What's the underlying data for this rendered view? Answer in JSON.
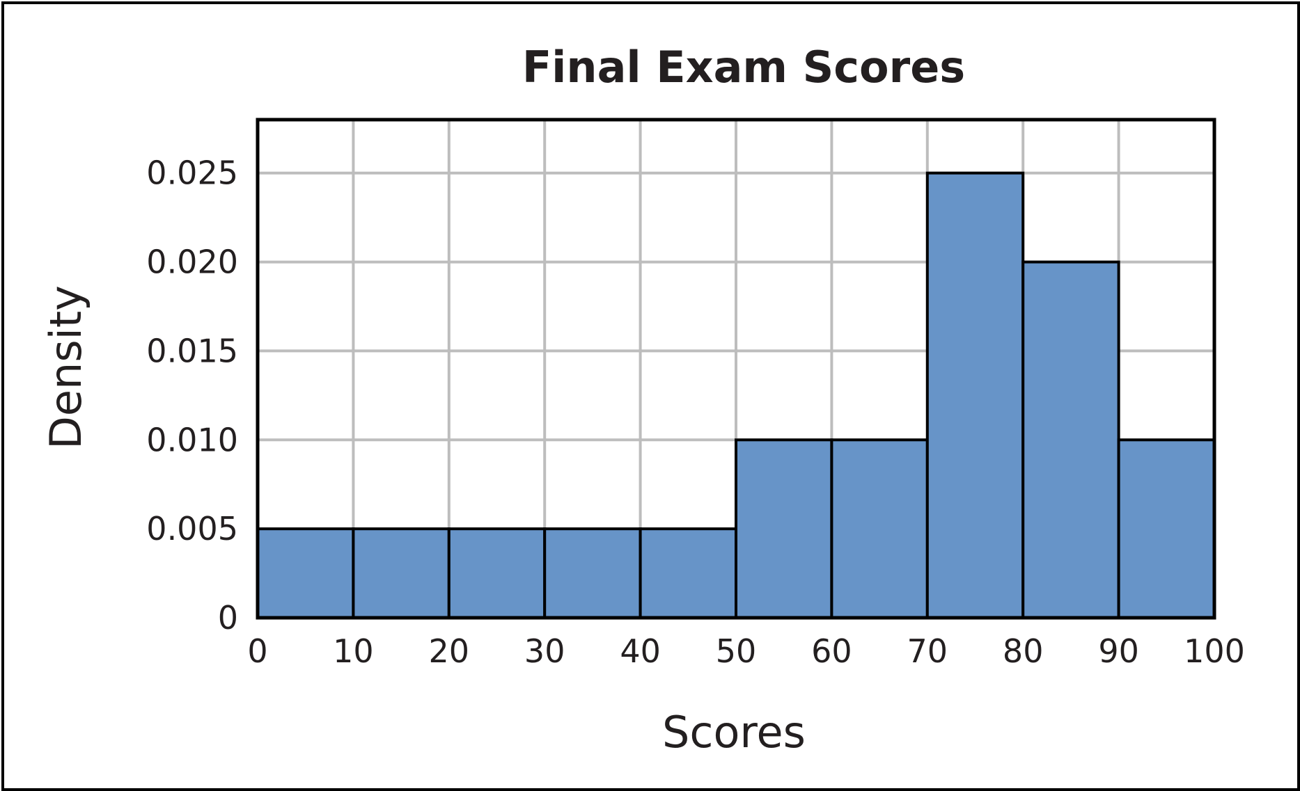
{
  "chart_data": {
    "type": "bar",
    "title": "Final Exam Scores",
    "xlabel": "Scores",
    "ylabel": "Density",
    "bins": [
      {
        "start": 0,
        "end": 10,
        "value": 0.005
      },
      {
        "start": 10,
        "end": 20,
        "value": 0.005
      },
      {
        "start": 20,
        "end": 30,
        "value": 0.005
      },
      {
        "start": 30,
        "end": 40,
        "value": 0.005
      },
      {
        "start": 40,
        "end": 50,
        "value": 0.005
      },
      {
        "start": 50,
        "end": 60,
        "value": 0.01
      },
      {
        "start": 60,
        "end": 70,
        "value": 0.01
      },
      {
        "start": 70,
        "end": 80,
        "value": 0.025
      },
      {
        "start": 80,
        "end": 90,
        "value": 0.02
      },
      {
        "start": 90,
        "end": 100,
        "value": 0.01
      }
    ],
    "xlim": [
      0,
      100
    ],
    "ylim": [
      0,
      0.028
    ],
    "x_ticks": [
      0,
      10,
      20,
      30,
      40,
      50,
      60,
      70,
      80,
      90,
      100
    ],
    "x_tick_labels": [
      "0",
      "10",
      "20",
      "30",
      "40",
      "50",
      "60",
      "70",
      "80",
      "90",
      "100"
    ],
    "y_ticks": [
      0,
      0.005,
      0.01,
      0.015,
      0.02,
      0.025
    ],
    "y_tick_labels": [
      "0",
      "0.005",
      "0.010",
      "0.015",
      "0.020",
      "0.025"
    ],
    "grid": true,
    "legend": "none",
    "colors": {
      "bar_fill": "#6794c8",
      "bar_edge": "#000000",
      "grid": "#bdbdbd",
      "text": "#231f20"
    }
  }
}
